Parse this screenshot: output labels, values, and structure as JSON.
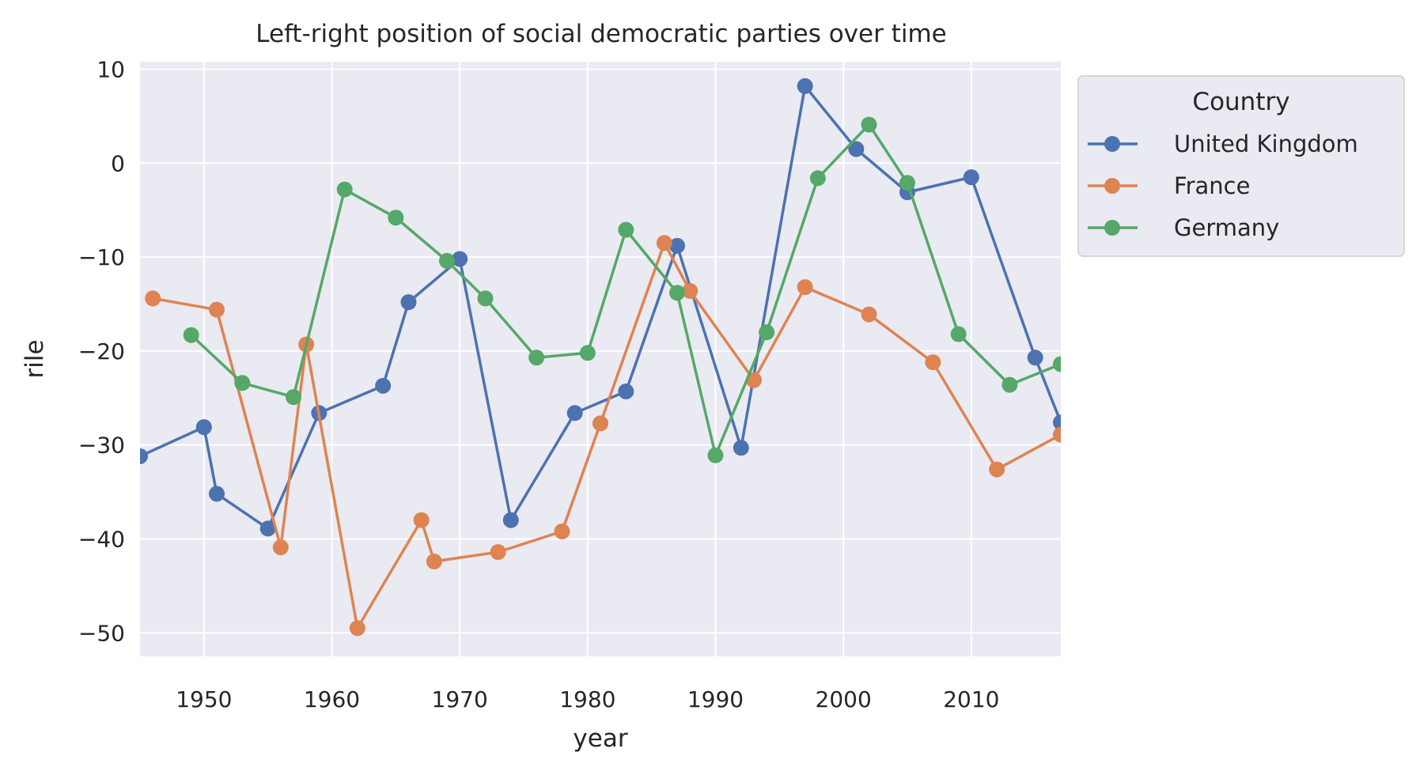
{
  "chart_data": {
    "type": "line",
    "title": "Left-right position of social democratic parties over time",
    "xlabel": "year",
    "ylabel": "rile",
    "xlim": [
      1945,
      2017
    ],
    "ylim": [
      -52.5,
      10.8
    ],
    "xticks": [
      1950,
      1960,
      1970,
      1980,
      1990,
      2000,
      2010
    ],
    "yticks": [
      10,
      0,
      -10,
      -20,
      -30,
      -40,
      -50
    ],
    "ytick_labels": [
      "10",
      "0",
      "−10",
      "−20",
      "−30",
      "−40",
      "−50"
    ],
    "grid": true,
    "legend_title": "Country",
    "legend_position": "outside-right-top",
    "series": [
      {
        "name": "United Kingdom",
        "color": "#4c72b0",
        "x": [
          1945,
          1950,
          1951,
          1955,
          1959,
          1964,
          1966,
          1970,
          1974,
          1979,
          1983,
          1987,
          1992,
          1997,
          2001,
          2005,
          2010,
          2015,
          2017
        ],
        "y": [
          -31.2,
          -28.1,
          -35.2,
          -38.9,
          -26.6,
          -23.7,
          -14.8,
          -10.2,
          -38.0,
          -26.6,
          -24.3,
          -8.8,
          -30.3,
          8.2,
          1.5,
          -3.1,
          -1.5,
          -20.7,
          -27.6
        ]
      },
      {
        "name": "France",
        "color": "#dd8452",
        "x": [
          1946,
          1951,
          1956,
          1958,
          1962,
          1967,
          1968,
          1973,
          1978,
          1981,
          1986,
          1988,
          1993,
          1997,
          2002,
          2007,
          2012,
          2017
        ],
        "y": [
          -14.4,
          -15.6,
          -40.9,
          -19.3,
          -49.5,
          -38.0,
          -42.4,
          -41.4,
          -39.2,
          -27.7,
          -8.5,
          -13.6,
          -23.1,
          -13.2,
          -16.1,
          -21.2,
          -32.6,
          -28.9
        ]
      },
      {
        "name": "Germany",
        "color": "#55a868",
        "x": [
          1949,
          1953,
          1957,
          1961,
          1965,
          1969,
          1972,
          1976,
          1980,
          1983,
          1987,
          1990,
          1994,
          1998,
          2002,
          2005,
          2009,
          2013,
          2017
        ],
        "y": [
          -18.3,
          -23.4,
          -24.9,
          -2.8,
          -5.8,
          -10.4,
          -14.4,
          -20.7,
          -20.2,
          -7.1,
          -13.8,
          -31.1,
          -18.0,
          -1.6,
          4.1,
          -2.1,
          -18.2,
          -23.6,
          -21.4
        ]
      }
    ]
  }
}
